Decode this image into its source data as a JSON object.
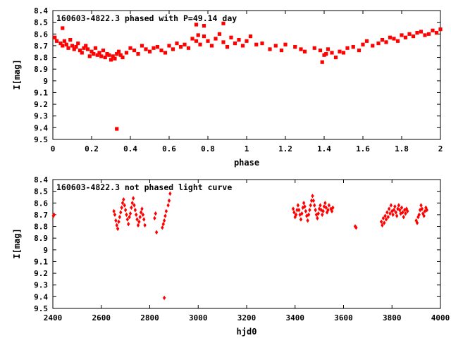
{
  "colors": {
    "points": "#ff0000",
    "axes": "#000000",
    "background": "#ffffff"
  },
  "chart_data": [
    {
      "type": "scatter",
      "title": "160603-4822.3 phased with P=49.14 day",
      "xlabel": "phase",
      "ylabel": "I[mag]",
      "xlim": [
        0,
        2
      ],
      "ylim": [
        8.4,
        9.5
      ],
      "y_inverted": true,
      "xticks": [
        "0",
        "0.2",
        "0.4",
        "0.6",
        "0.8",
        "1",
        "1.2",
        "1.4",
        "1.6",
        "1.8",
        "2"
      ],
      "yticks": [
        "8.4",
        "8.5",
        "8.6",
        "8.7",
        "8.8",
        "8.9",
        "9",
        "9.1",
        "9.2",
        "9.3",
        "9.4",
        "9.5"
      ],
      "grid": false,
      "legend": "none",
      "marker": "filled-square",
      "x": [
        0.01,
        0.02,
        0.04,
        0.05,
        0.06,
        0.07,
        0.08,
        0.09,
        0.1,
        0.11,
        0.12,
        0.13,
        0.14,
        0.15,
        0.16,
        0.17,
        0.18,
        0.19,
        0.2,
        0.21,
        0.22,
        0.23,
        0.24,
        0.25,
        0.26,
        0.27,
        0.28,
        0.29,
        0.3,
        0.31,
        0.32,
        0.33,
        0.34,
        0.35,
        0.36,
        0.38,
        0.4,
        0.42,
        0.44,
        0.46,
        0.48,
        0.5,
        0.52,
        0.54,
        0.56,
        0.58,
        0.6,
        0.62,
        0.64,
        0.66,
        0.68,
        0.7,
        0.72,
        0.74,
        0.75,
        0.76,
        0.78,
        0.8,
        0.82,
        0.84,
        0.86,
        0.88,
        0.9,
        0.92,
        0.94,
        0.96,
        0.98,
        1.0,
        1.02,
        1.05,
        1.08,
        1.12,
        1.15,
        1.18,
        1.2,
        1.25,
        1.28,
        1.3,
        1.35,
        1.38,
        1.4,
        1.41,
        1.42,
        1.44,
        1.46,
        1.48,
        1.5,
        1.52,
        1.55,
        1.58,
        1.6,
        1.62,
        1.65,
        1.68,
        1.7,
        1.72,
        1.74,
        1.76,
        1.78,
        1.8,
        1.82,
        1.84,
        1.86,
        1.88,
        1.9,
        1.92,
        1.94,
        1.96,
        1.98,
        2.0,
        0.33,
        0.05,
        0.74,
        0.78,
        0.88,
        1.39
      ],
      "y": [
        8.63,
        8.66,
        8.68,
        8.7,
        8.66,
        8.69,
        8.72,
        8.65,
        8.7,
        8.73,
        8.71,
        8.68,
        8.74,
        8.76,
        8.72,
        8.7,
        8.73,
        8.79,
        8.75,
        8.77,
        8.72,
        8.78,
        8.76,
        8.79,
        8.74,
        8.8,
        8.77,
        8.78,
        8.82,
        8.79,
        8.81,
        8.77,
        8.75,
        8.78,
        8.8,
        8.76,
        8.72,
        8.74,
        8.77,
        8.7,
        8.73,
        8.75,
        8.72,
        8.71,
        8.74,
        8.76,
        8.7,
        8.73,
        8.68,
        8.71,
        8.69,
        8.72,
        8.64,
        8.66,
        8.61,
        8.69,
        8.62,
        8.66,
        8.7,
        8.64,
        8.6,
        8.67,
        8.71,
        8.63,
        8.68,
        8.65,
        8.7,
        8.66,
        8.62,
        8.69,
        8.68,
        8.73,
        8.7,
        8.74,
        8.69,
        8.71,
        8.73,
        8.75,
        8.72,
        8.74,
        8.78,
        8.77,
        8.73,
        8.76,
        8.8,
        8.75,
        8.76,
        8.72,
        8.71,
        8.74,
        8.69,
        8.66,
        8.7,
        8.68,
        8.65,
        8.67,
        8.63,
        8.64,
        8.66,
        8.61,
        8.63,
        8.6,
        8.62,
        8.59,
        8.58,
        8.61,
        8.6,
        8.57,
        8.59,
        8.56,
        9.41,
        8.55,
        8.52,
        8.53,
        8.51,
        8.84
      ],
      "xy_note": ""
    },
    {
      "type": "scatter",
      "title": "160603-4822.3 not phased light curve",
      "xlabel": "hjd0",
      "ylabel": "I[mag]",
      "xlim": [
        2400,
        4000
      ],
      "ylim": [
        8.4,
        9.5
      ],
      "y_inverted": true,
      "xticks": [
        "2400",
        "2600",
        "2800",
        "3000",
        "3200",
        "3400",
        "3600",
        "3800",
        "4000"
      ],
      "yticks": [
        "8.4",
        "8.5",
        "8.6",
        "8.7",
        "8.8",
        "8.9",
        "9",
        "9.1",
        "9.2",
        "9.3",
        "9.4",
        "9.5"
      ],
      "grid": false,
      "legend": "none",
      "marker": "filled-diamond",
      "x": [
        2402,
        2405,
        2652,
        2656,
        2660,
        2664,
        2668,
        2672,
        2676,
        2680,
        2684,
        2688,
        2692,
        2696,
        2700,
        2704,
        2708,
        2712,
        2716,
        2720,
        2724,
        2728,
        2732,
        2736,
        2740,
        2744,
        2748,
        2752,
        2756,
        2760,
        2764,
        2768,
        2772,
        2776,
        2780,
        2820,
        2824,
        2828,
        2852,
        2856,
        2860,
        2864,
        2868,
        2876,
        2880,
        2884,
        2860,
        3392,
        3396,
        3400,
        3404,
        3408,
        3412,
        3416,
        3420,
        3424,
        3428,
        3432,
        3436,
        3440,
        3444,
        3448,
        3452,
        3456,
        3460,
        3464,
        3468,
        3472,
        3476,
        3480,
        3484,
        3488,
        3492,
        3496,
        3500,
        3504,
        3508,
        3512,
        3516,
        3520,
        3524,
        3528,
        3532,
        3536,
        3540,
        3548,
        3552,
        3556,
        3648,
        3652,
        3756,
        3760,
        3764,
        3768,
        3772,
        3776,
        3780,
        3784,
        3788,
        3792,
        3796,
        3800,
        3804,
        3808,
        3812,
        3816,
        3820,
        3824,
        3828,
        3832,
        3836,
        3840,
        3844,
        3848,
        3852,
        3856,
        3860,
        3864,
        3900,
        3904,
        3908,
        3912,
        3916,
        3920,
        3924,
        3928,
        3932,
        3936,
        3940,
        3944
      ],
      "y": [
        8.71,
        8.7,
        8.67,
        8.7,
        8.75,
        8.79,
        8.82,
        8.76,
        8.72,
        8.68,
        8.64,
        8.6,
        8.57,
        8.62,
        8.66,
        8.7,
        8.74,
        8.78,
        8.72,
        8.69,
        8.64,
        8.6,
        8.56,
        8.62,
        8.66,
        8.7,
        8.74,
        8.79,
        8.76,
        8.72,
        8.68,
        8.65,
        8.7,
        8.74,
        8.79,
        8.73,
        8.69,
        8.85,
        8.81,
        8.78,
        8.75,
        8.71,
        8.67,
        8.62,
        8.58,
        8.52,
        9.41,
        8.65,
        8.68,
        8.72,
        8.7,
        8.66,
        8.62,
        8.66,
        8.7,
        8.74,
        8.69,
        8.64,
        8.6,
        8.63,
        8.67,
        8.71,
        8.75,
        8.7,
        8.66,
        8.62,
        8.58,
        8.54,
        8.58,
        8.62,
        8.66,
        8.7,
        8.73,
        8.69,
        8.65,
        8.62,
        8.66,
        8.7,
        8.67,
        8.63,
        8.6,
        8.64,
        8.68,
        8.66,
        8.62,
        8.65,
        8.67,
        8.64,
        8.8,
        8.81,
        8.76,
        8.79,
        8.73,
        8.77,
        8.71,
        8.74,
        8.68,
        8.72,
        8.65,
        8.69,
        8.62,
        8.67,
        8.7,
        8.66,
        8.63,
        8.68,
        8.71,
        8.65,
        8.62,
        8.66,
        8.69,
        8.64,
        8.68,
        8.72,
        8.66,
        8.69,
        8.65,
        8.67,
        8.75,
        8.77,
        8.72,
        8.7,
        8.66,
        8.62,
        8.65,
        8.69,
        8.71,
        8.67,
        8.64,
        8.66
      ]
    }
  ]
}
